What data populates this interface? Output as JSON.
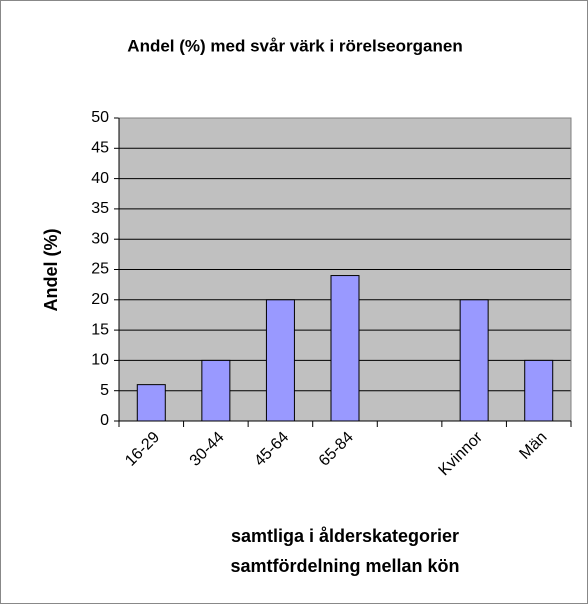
{
  "chart_data": {
    "type": "bar",
    "title": "Andel (%) med svår värk i rörelseorganen",
    "y_label": "Andel (%)",
    "x_label": [
      "samtliga i ålderskategorier",
      "samtfördelning mellan kön"
    ],
    "categories": [
      "16-29",
      "30-44",
      "45-64",
      "65-84",
      null,
      "Kvinnor",
      "Män"
    ],
    "values": [
      6,
      10,
      20,
      24,
      null,
      20,
      10
    ],
    "color": "#9999ff",
    "ylim": [
      0,
      50
    ],
    "yticks": [
      0,
      5,
      10,
      15,
      20,
      25,
      30,
      35,
      40,
      45,
      50
    ],
    "grid": true
  }
}
